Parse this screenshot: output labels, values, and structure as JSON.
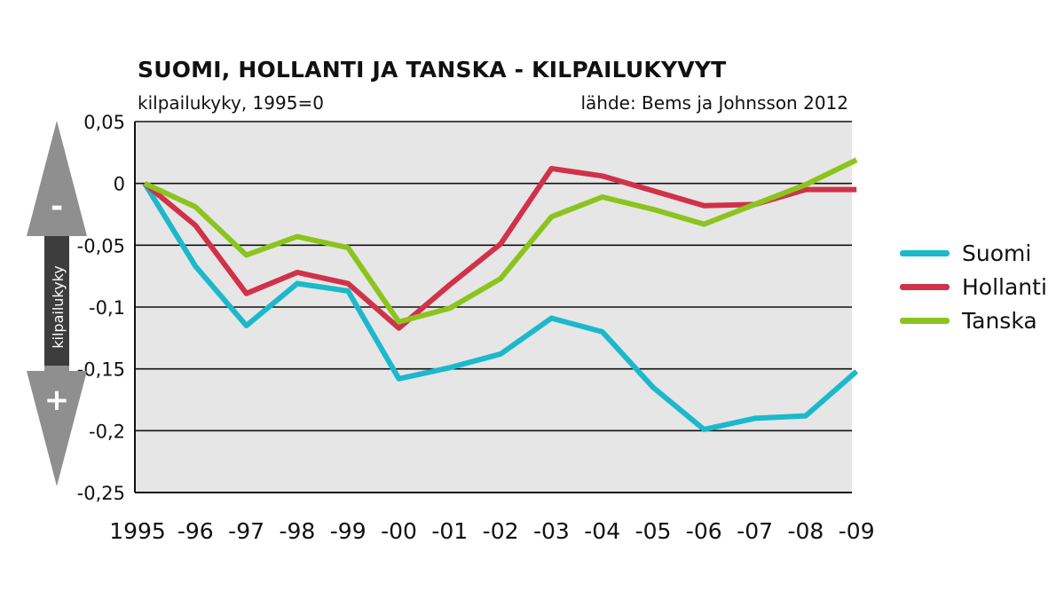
{
  "chart_data": {
    "type": "line",
    "title": "SUOMI, HOLLANTI JA TANSKA - KILPAILUKYVYT",
    "subtitle": "kilpailukyky, 1995=0",
    "source": "lähde: Bems ja Johnsson 2012",
    "ylabel": "kilpailukyky",
    "arrow_labels": {
      "top": "-",
      "bottom": "+"
    },
    "categories": [
      "1995",
      "-96",
      "-97",
      "-98",
      "-99",
      "-00",
      "-01",
      "-02",
      "-03",
      "-04",
      "-05",
      "-06",
      "-07",
      "-08",
      "-09"
    ],
    "ylim": [
      -0.25,
      0.05
    ],
    "yticks": [
      {
        "value": 0.05,
        "label": "0,05"
      },
      {
        "value": 0,
        "label": "0"
      },
      {
        "value": -0.05,
        "label": "-0,05"
      },
      {
        "value": -0.1,
        "label": "-0,1"
      },
      {
        "value": -0.15,
        "label": "-0,15"
      },
      {
        "value": -0.2,
        "label": "-0,2"
      },
      {
        "value": -0.25,
        "label": "-0,25"
      }
    ],
    "grid": true,
    "legend_position": "right",
    "series": [
      {
        "name": "Suomi",
        "color": "#1cb8cc",
        "values": [
          0,
          -0.067,
          -0.115,
          -0.081,
          -0.087,
          -0.158,
          -0.149,
          -0.138,
          -0.109,
          -0.12,
          -0.165,
          -0.199,
          -0.19,
          -0.188,
          -0.152
        ]
      },
      {
        "name": "Hollanti",
        "color": "#d0324a",
        "values": [
          0,
          -0.034,
          -0.089,
          -0.072,
          -0.081,
          -0.117,
          -0.082,
          -0.049,
          0.012,
          0.006,
          -0.006,
          -0.018,
          -0.017,
          -0.005,
          -0.005
        ]
      },
      {
        "name": "Tanska",
        "color": "#8cc41e",
        "values": [
          0,
          -0.019,
          -0.058,
          -0.043,
          -0.052,
          -0.112,
          -0.101,
          -0.077,
          -0.027,
          -0.011,
          -0.021,
          -0.033,
          -0.017,
          -0.001,
          0.019
        ]
      }
    ]
  }
}
